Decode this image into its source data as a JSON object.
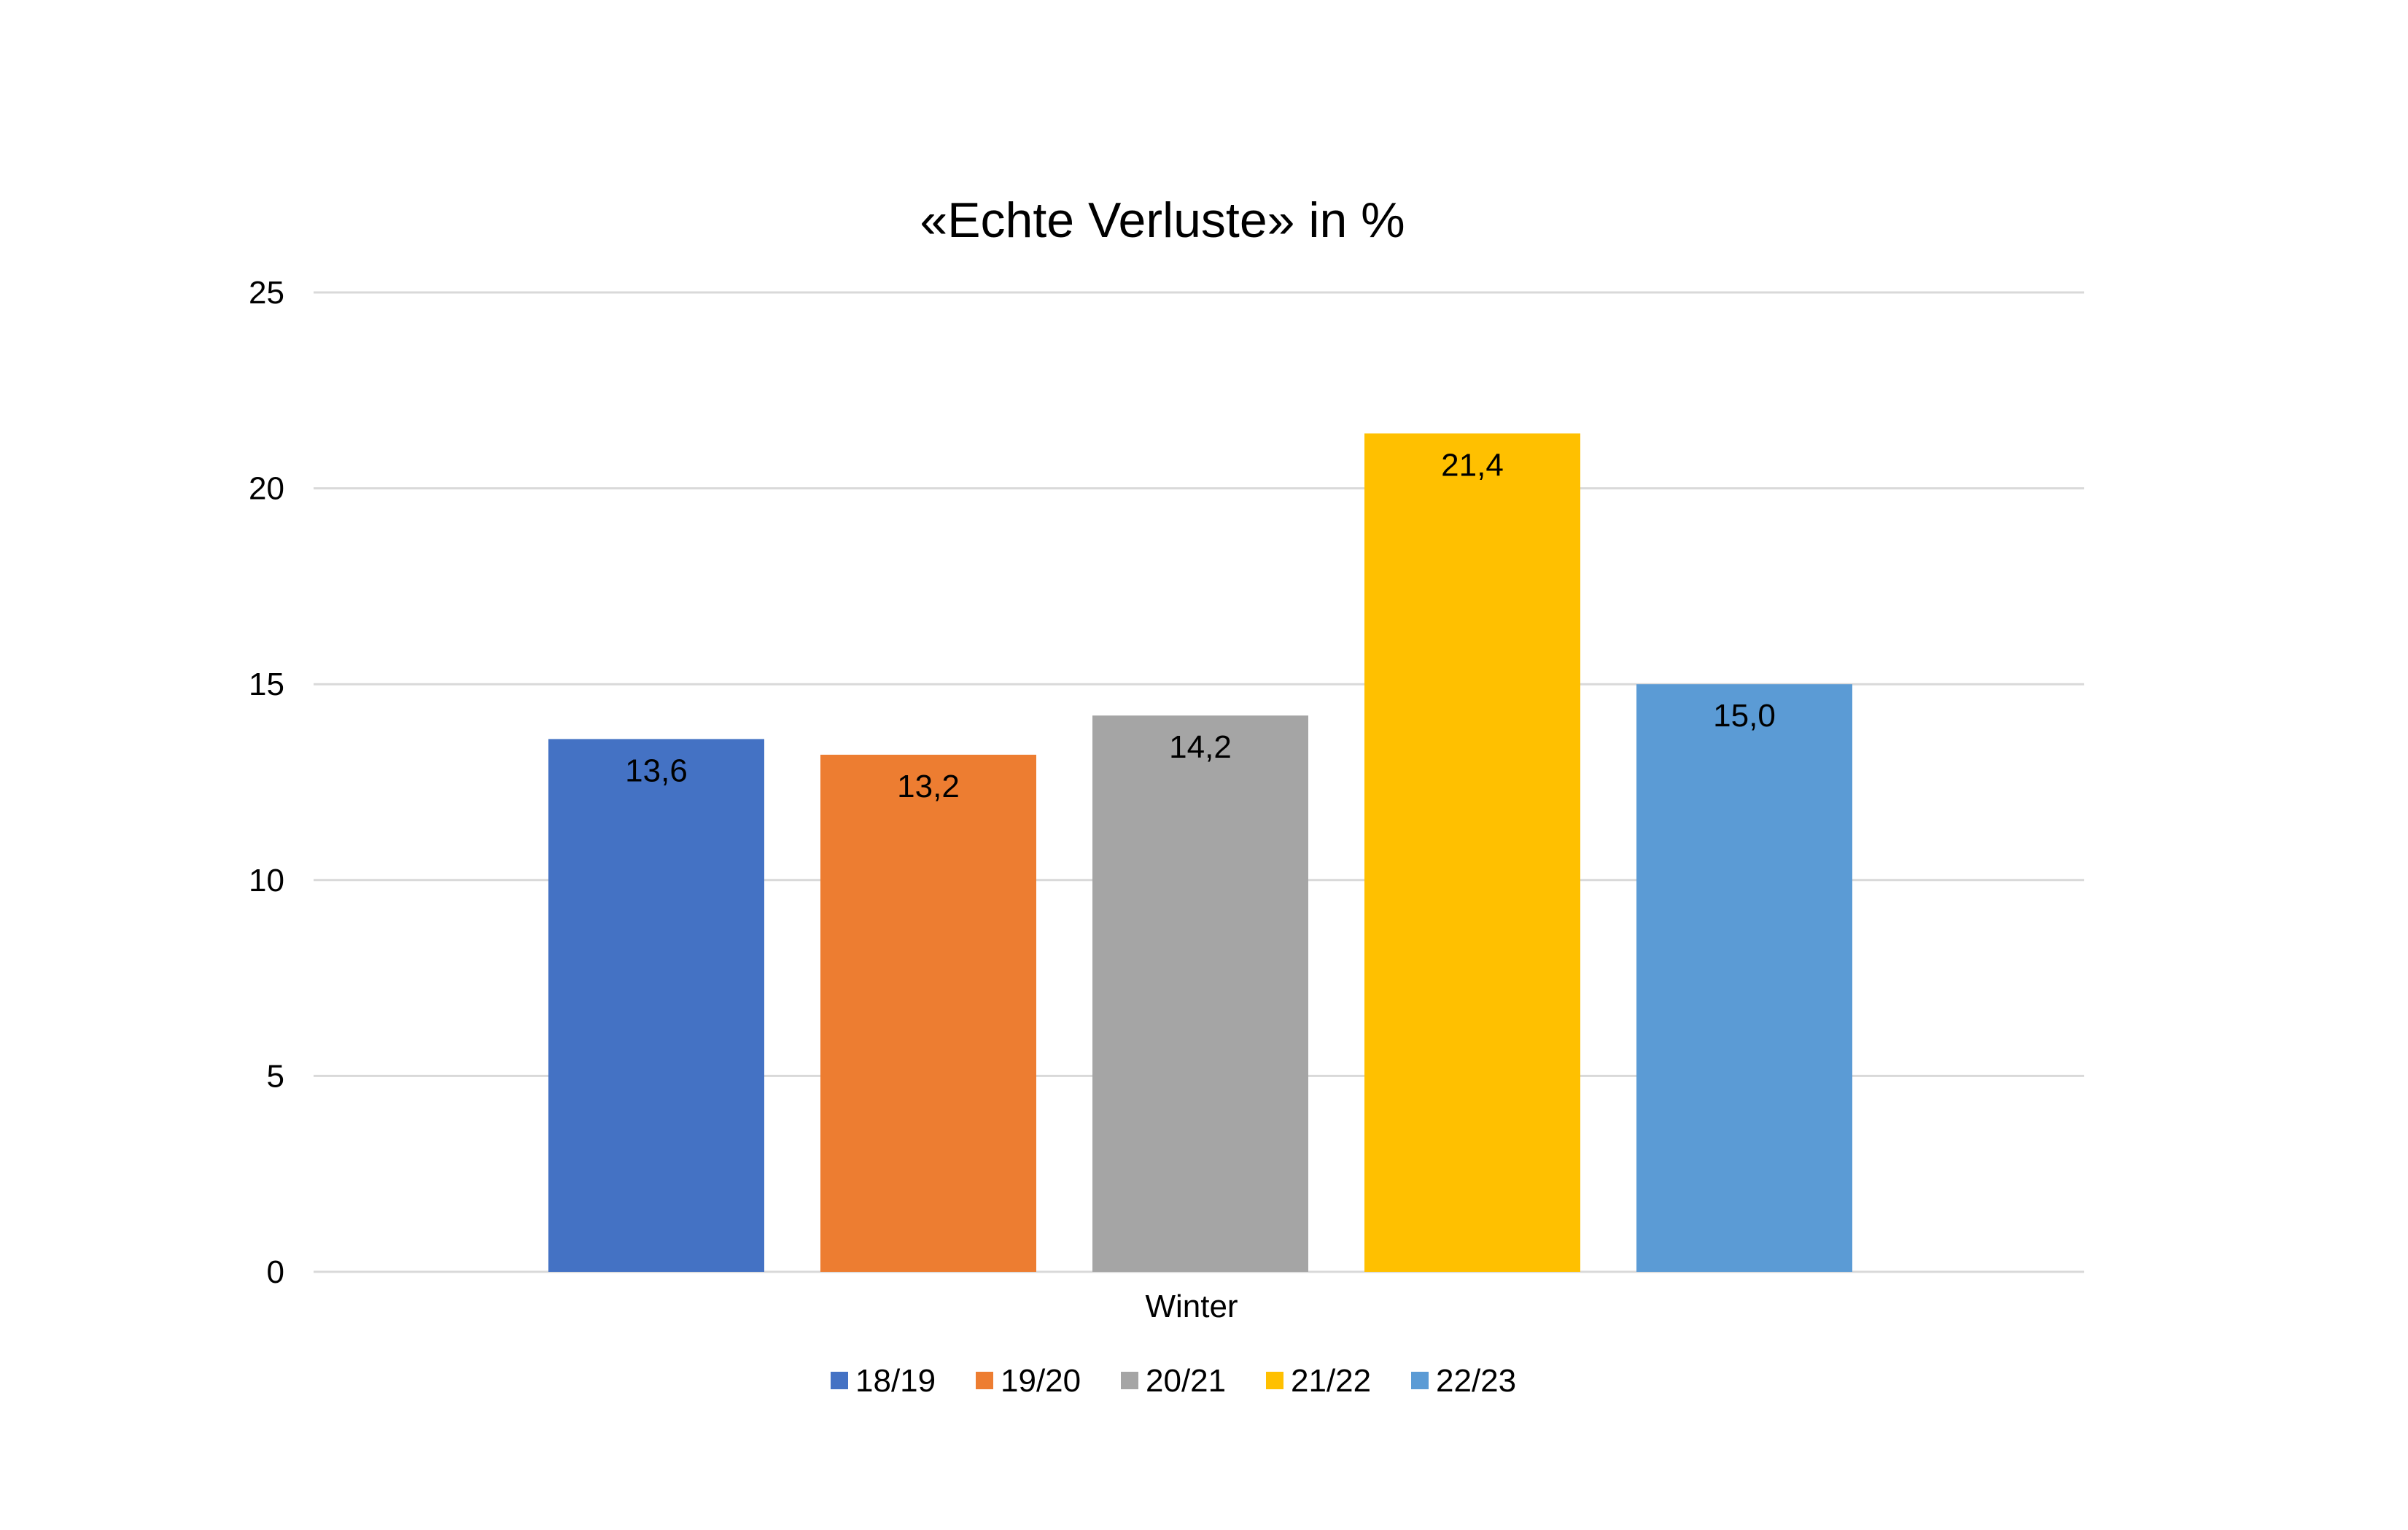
{
  "chart_data": {
    "type": "bar",
    "title": "«Echte Verluste» in %",
    "categories": [
      "Winter"
    ],
    "series": [
      {
        "name": "18/19",
        "values": [
          13.6
        ],
        "label": "13,6",
        "color": "#4472C4"
      },
      {
        "name": "19/20",
        "values": [
          13.2
        ],
        "label": "13,2",
        "color": "#ED7D31"
      },
      {
        "name": "20/21",
        "values": [
          14.2
        ],
        "label": "14,2",
        "color": "#A5A5A5"
      },
      {
        "name": "21/22",
        "values": [
          21.4
        ],
        "label": "21,4",
        "color": "#FFC000"
      },
      {
        "name": "22/23",
        "values": [
          15.0
        ],
        "label": "15,0",
        "color": "#5B9BD5"
      }
    ],
    "ylim": [
      0,
      25
    ],
    "yticks": [
      "0",
      "5",
      "10",
      "15",
      "20",
      "25"
    ],
    "grid": true,
    "legend_position": "bottom"
  }
}
